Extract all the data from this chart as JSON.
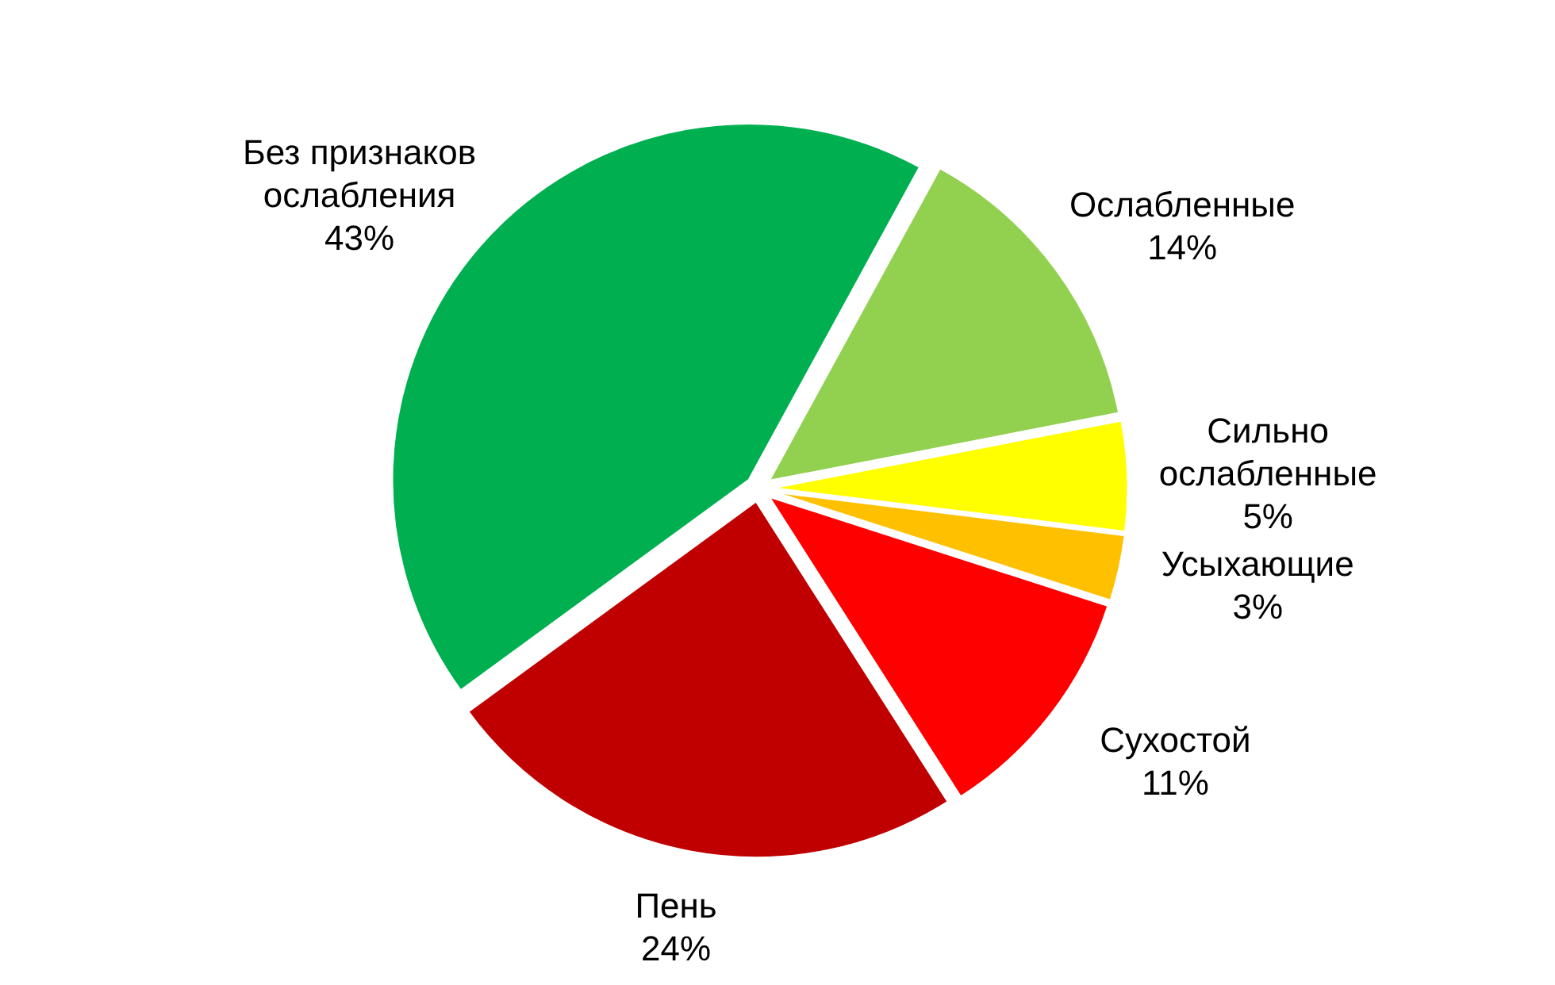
{
  "chart_data": {
    "type": "pie",
    "categories": [
      "Ослабленные",
      "Сильно ослабленные",
      "Усыхающие",
      "Сухостой",
      "Пень",
      "Без признаков ослабления"
    ],
    "values": [
      14,
      5,
      3,
      11,
      24,
      43
    ],
    "value_labels": [
      "14%",
      "5%",
      "3%",
      "11%",
      "24%",
      "43%"
    ],
    "colors": [
      "#92d050",
      "#ffff00",
      "#ffc000",
      "#ff0000",
      "#c00000",
      "#00b050"
    ]
  }
}
